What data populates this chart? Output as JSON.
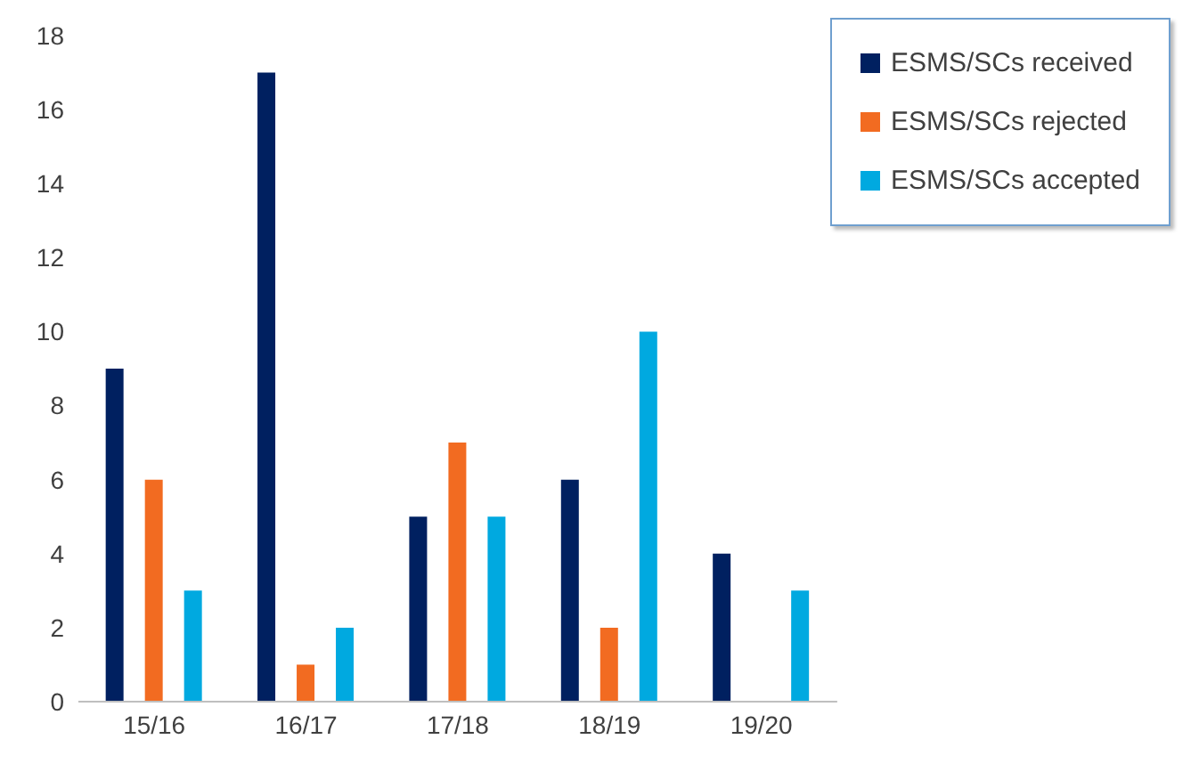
{
  "chart_data": {
    "type": "bar",
    "categories": [
      "15/16",
      "16/17",
      "17/18",
      "18/19",
      "19/20"
    ],
    "series": [
      {
        "name": "ESMS/SCs received",
        "color": "#002060",
        "values": [
          9,
          17,
          5,
          6,
          4
        ]
      },
      {
        "name": "ESMS/SCs rejected",
        "color": "#f26b21",
        "values": [
          6,
          1,
          7,
          2,
          0
        ]
      },
      {
        "name": "ESMS/SCs accepted",
        "color": "#00a9e0",
        "values": [
          3,
          2,
          5,
          10,
          3
        ]
      }
    ],
    "ylim": [
      0,
      18
    ],
    "yticks": [
      0,
      2,
      4,
      6,
      8,
      10,
      12,
      14,
      16,
      18
    ],
    "grid": false,
    "legend": "top right"
  }
}
